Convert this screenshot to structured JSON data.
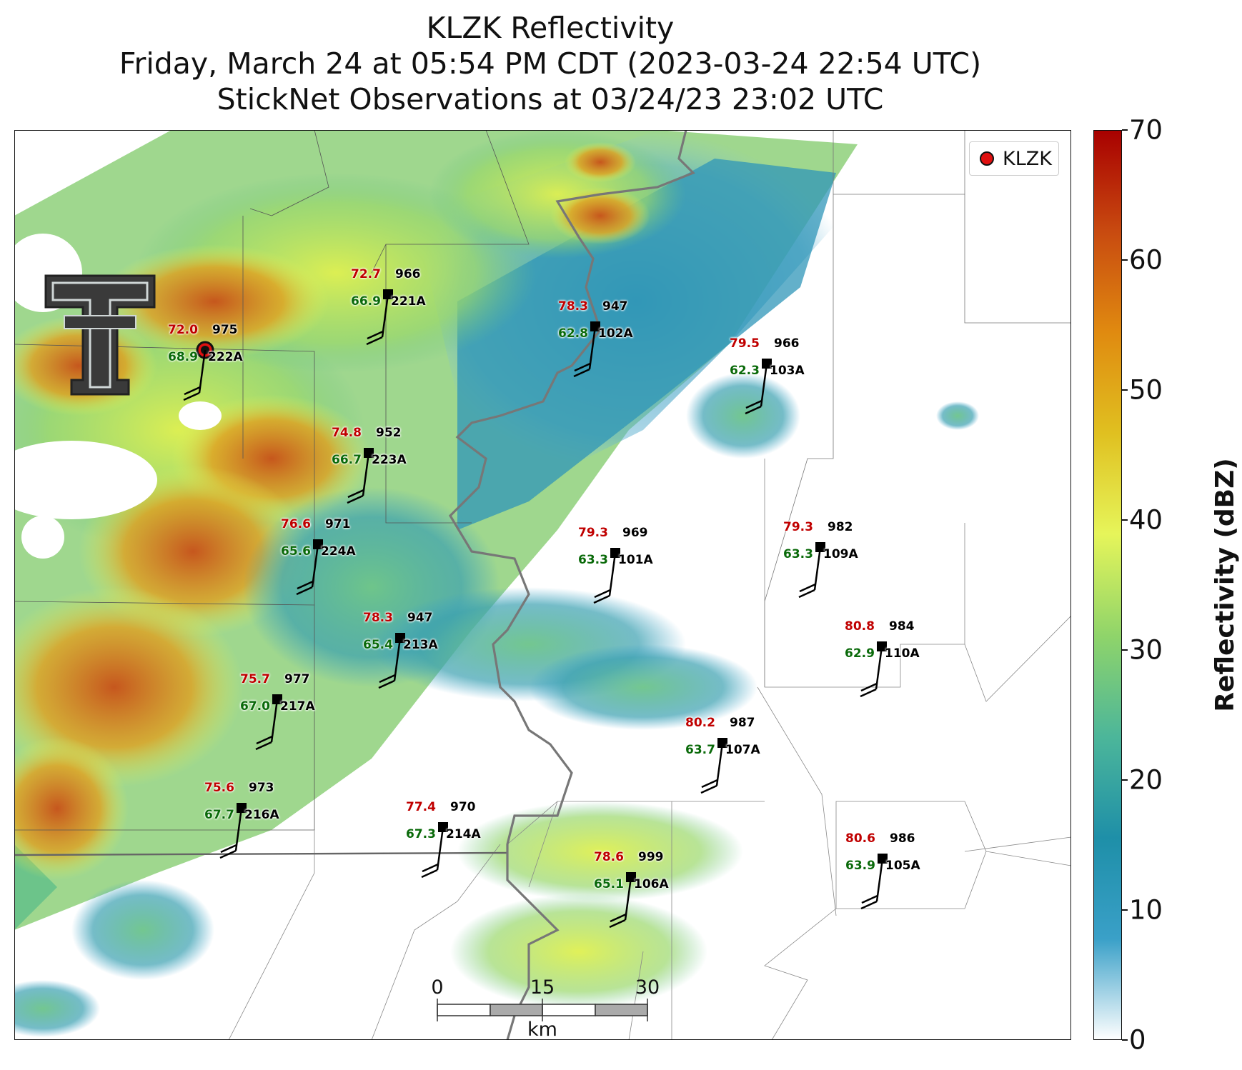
{
  "title": {
    "line1": "KLZK Reflectivity",
    "line2": "Friday, March 24 at 05:54 PM CDT (2023-03-24 22:54 UTC)",
    "line3": "StickNet Observations at 03/24/23 23:02 UTC"
  },
  "legend": {
    "label": "KLZK"
  },
  "colorbar": {
    "label": "Reflectivity (dBZ)",
    "ticks": [
      "0",
      "10",
      "20",
      "30",
      "40",
      "50",
      "60",
      "70"
    ],
    "colors": [
      "#ffffff",
      "#3aa0c8",
      "#1e8fa8",
      "#4cb69a",
      "#8fd46a",
      "#e6f55a",
      "#e0c020",
      "#e08a10",
      "#c84a10",
      "#a80000"
    ]
  },
  "scale_bar": {
    "labels": [
      "0",
      "15",
      "30"
    ],
    "unit": "km"
  },
  "stations": [
    {
      "id": "222A",
      "temp": "72.0",
      "dew": "68.9",
      "pres": "975"
    },
    {
      "id": "221A",
      "temp": "72.7",
      "dew": "66.9",
      "pres": "966"
    },
    {
      "id": "102A",
      "temp": "78.3",
      "dew": "62.8",
      "pres": "947"
    },
    {
      "id": "103A",
      "temp": "79.5",
      "dew": "62.3",
      "pres": "966"
    },
    {
      "id": "223A",
      "temp": "74.8",
      "dew": "66.7",
      "pres": "952"
    },
    {
      "id": "224A",
      "temp": "76.6",
      "dew": "65.6",
      "pres": "971"
    },
    {
      "id": "101A",
      "temp": "79.3",
      "dew": "63.3",
      "pres": "969"
    },
    {
      "id": "109A",
      "temp": "79.3",
      "dew": "63.3",
      "pres": "982"
    },
    {
      "id": "213A",
      "temp": "78.3",
      "dew": "65.4",
      "pres": "947"
    },
    {
      "id": "110A",
      "temp": "80.8",
      "dew": "62.9",
      "pres": "984"
    },
    {
      "id": "217A",
      "temp": "75.7",
      "dew": "67.0",
      "pres": "977"
    },
    {
      "id": "107A",
      "temp": "80.2",
      "dew": "63.7",
      "pres": "987"
    },
    {
      "id": "216A",
      "temp": "75.6",
      "dew": "67.7",
      "pres": "973"
    },
    {
      "id": "214A",
      "temp": "77.4",
      "dew": "67.3",
      "pres": "970"
    },
    {
      "id": "106A",
      "temp": "78.6",
      "dew": "65.1",
      "pres": "999"
    },
    {
      "id": "105A",
      "temp": "80.6",
      "dew": "63.9",
      "pres": "986"
    }
  ]
}
